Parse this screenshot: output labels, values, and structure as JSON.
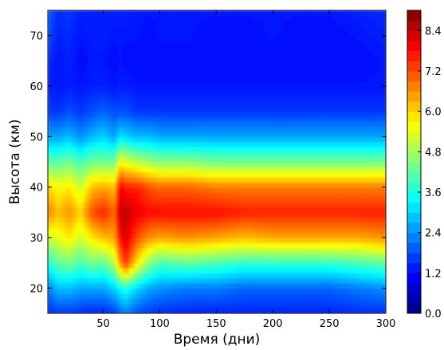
{
  "chart_data": {
    "type": "heatmap",
    "title": "",
    "xlabel": "Время (дни)",
    "ylabel": "Высота (км)",
    "xlim": [
      1,
      300
    ],
    "ylim": [
      15,
      75
    ],
    "x_ticks": [
      50,
      100,
      150,
      200,
      250,
      300
    ],
    "y_ticks": [
      20,
      30,
      40,
      50,
      60,
      70
    ],
    "colorbar": {
      "range": [
        0,
        9.0
      ],
      "ticks": [
        "0.0",
        "1.2",
        "2.4",
        "3.6",
        "4.8",
        "6.0",
        "7.2",
        "8.4"
      ],
      "colormap": "jet"
    },
    "time_days": [
      1,
      10,
      20,
      30,
      40,
      50,
      60,
      65,
      70,
      80,
      90,
      100,
      125,
      150,
      175,
      200,
      225,
      250,
      275,
      300
    ],
    "altitude_km": [
      15,
      20,
      25,
      30,
      35,
      40,
      45,
      50,
      55,
      60,
      65,
      70,
      75
    ],
    "values": [
      [
        1.4,
        1.6,
        1.6,
        1.5,
        1.4,
        1.4,
        1.6,
        2.0,
        2.2,
        1.8,
        1.6,
        1.5,
        1.4,
        1.4,
        1.4,
        1.4,
        1.4,
        1.4,
        1.5,
        1.5
      ],
      [
        2.2,
        2.8,
        2.8,
        2.6,
        2.6,
        2.6,
        3.0,
        3.4,
        3.6,
        3.0,
        2.6,
        2.4,
        2.2,
        2.2,
        2.0,
        2.0,
        2.0,
        2.0,
        2.2,
        2.4
      ],
      [
        3.6,
        4.2,
        4.4,
        4.0,
        4.4,
        4.2,
        5.0,
        6.6,
        7.4,
        5.8,
        4.6,
        4.0,
        4.2,
        4.0,
        3.8,
        3.8,
        3.8,
        3.8,
        4.0,
        4.2
      ],
      [
        5.2,
        5.4,
        5.8,
        5.2,
        5.8,
        6.2,
        6.4,
        7.8,
        8.2,
        7.2,
        6.6,
        6.4,
        6.6,
        6.4,
        6.2,
        6.4,
        6.4,
        6.4,
        6.4,
        6.6
      ],
      [
        6.8,
        6.2,
        6.6,
        6.0,
        7.2,
        7.6,
        7.0,
        8.4,
        8.4,
        8.0,
        7.8,
        7.8,
        7.8,
        7.8,
        7.6,
        7.6,
        7.6,
        7.6,
        7.6,
        7.6
      ],
      [
        6.0,
        5.6,
        5.8,
        5.2,
        6.2,
        6.4,
        6.2,
        8.0,
        7.6,
        7.6,
        7.2,
        7.0,
        7.0,
        6.8,
        6.8,
        6.8,
        6.8,
        6.8,
        6.8,
        6.8
      ],
      [
        4.2,
        4.2,
        4.4,
        4.0,
        4.4,
        4.4,
        4.4,
        5.6,
        5.4,
        5.0,
        4.8,
        4.6,
        4.6,
        4.4,
        4.4,
        4.4,
        4.4,
        4.4,
        4.4,
        4.4
      ],
      [
        2.6,
        2.6,
        2.8,
        2.4,
        2.8,
        3.0,
        2.6,
        3.2,
        3.0,
        2.8,
        2.8,
        2.6,
        2.6,
        2.6,
        2.6,
        2.6,
        2.6,
        2.6,
        2.6,
        2.6
      ],
      [
        1.6,
        1.6,
        1.8,
        1.6,
        1.8,
        2.0,
        1.8,
        1.8,
        1.8,
        1.6,
        1.6,
        1.6,
        1.6,
        1.6,
        1.6,
        1.6,
        1.6,
        1.6,
        1.6,
        1.6
      ],
      [
        1.4,
        1.3,
        1.4,
        1.3,
        1.4,
        1.4,
        1.3,
        1.4,
        1.4,
        1.3,
        1.3,
        1.3,
        1.3,
        1.3,
        1.3,
        1.3,
        1.3,
        1.3,
        1.3,
        1.3
      ],
      [
        1.5,
        1.3,
        1.4,
        1.2,
        1.3,
        1.3,
        1.2,
        1.3,
        1.2,
        1.2,
        1.2,
        1.2,
        1.2,
        1.2,
        1.2,
        1.2,
        1.2,
        1.2,
        1.2,
        1.3
      ],
      [
        1.8,
        1.4,
        1.5,
        1.3,
        1.4,
        1.4,
        1.3,
        1.3,
        1.3,
        1.3,
        1.2,
        1.3,
        1.3,
        1.2,
        1.2,
        1.3,
        1.2,
        1.2,
        1.3,
        1.4
      ],
      [
        2.0,
        1.5,
        1.6,
        1.4,
        1.4,
        1.4,
        1.4,
        1.4,
        1.4,
        1.3,
        1.3,
        1.3,
        1.3,
        1.3,
        1.3,
        1.3,
        1.3,
        1.3,
        1.4,
        1.5
      ]
    ]
  }
}
